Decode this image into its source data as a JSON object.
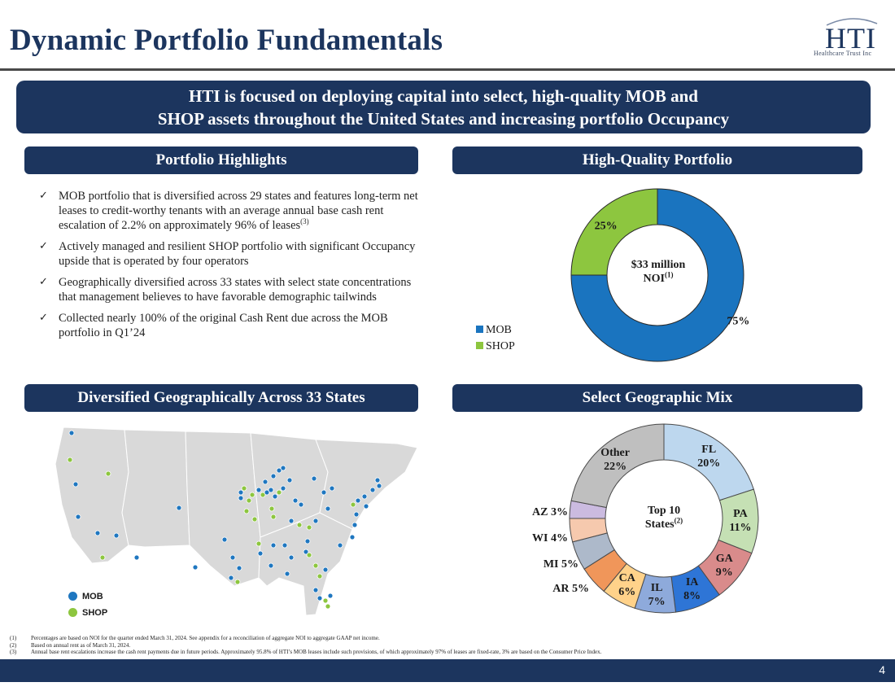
{
  "title": "Dynamic Portfolio Fundamentals",
  "logo": {
    "main": "HTI",
    "sub": "Healthcare Trust Inc"
  },
  "banner": {
    "line1": "HTI is focused on deploying capital into select, high-quality MOB and",
    "line2": "SHOP assets throughout the United States and increasing portfolio Occupancy"
  },
  "sections": {
    "highlights": "Portfolio Highlights",
    "quality": "High-Quality Portfolio",
    "geo": "Diversified Geographically Across 33 States",
    "mix": "Select Geographic Mix"
  },
  "bullets": [
    {
      "text": "MOB portfolio that is diversified across 29 states and features long-term net leases to credit-worthy tenants with an average annual base cash rent escalation of 2.2% on approximately 96% of leases",
      "sup": "(3)"
    },
    {
      "text": "Actively managed and resilient SHOP portfolio with significant Occupancy upside that is operated by four operators",
      "sup": ""
    },
    {
      "text": "Geographically diversified across 33 states with select state concentrations that management believes to have favorable demographic tailwinds",
      "sup": ""
    },
    {
      "text": "Collected nearly 100% of the original Cash Rent due across the MOB portfolio in Q1’24",
      "sup": ""
    }
  ],
  "check_icon": "checkmark-icon",
  "noi_center": {
    "line1": "$33 million",
    "line2": "NOI",
    "sup": "(1)"
  },
  "mix_center": {
    "line1": "Top 10",
    "line2": "States",
    "sup": "(2)"
  },
  "map_legend": {
    "mob": "MOB",
    "shop": "SHOP"
  },
  "colors": {
    "navy": "#1c355e",
    "mob_blue": "#1f77c0",
    "shop_green": "#8dc63f"
  },
  "chart_data": [
    {
      "type": "pie",
      "categories": [
        "MOB",
        "SHOP"
      ],
      "values": [
        75,
        25
      ],
      "labels": [
        "75%",
        "25%"
      ],
      "colors": [
        "#1a74bf",
        "#8dc63f"
      ],
      "legend": "bottom-left"
    },
    {
      "type": "pie",
      "categories": [
        "FL",
        "PA",
        "GA",
        "IA",
        "IL",
        "CA",
        "AR",
        "MI",
        "WI",
        "AZ",
        "Other"
      ],
      "values": [
        20,
        11,
        9,
        8,
        7,
        6,
        5,
        5,
        4,
        3,
        22
      ],
      "labels": [
        "FL\n20%",
        "PA\n11%",
        "GA\n9%",
        "IA\n8%",
        "IL\n7%",
        "CA\n6%",
        "AR 5%",
        "MI 5%",
        "WI 4%",
        "AZ 3%",
        "Other\n22%"
      ],
      "colors": [
        "#bdd7ee",
        "#c5e0b4",
        "#d98b8b",
        "#2e75d6",
        "#8eaadb",
        "#ffd28a",
        "#f0965a",
        "#adb9ca",
        "#f6c9ae",
        "#cbbbe0",
        "#bfbfbf"
      ]
    }
  ],
  "footnotes": [
    {
      "n": "(1)",
      "text": "Percentages are based on NOI for the quarter ended March 31, 2024. See appendix for a reconciliation of aggregate NOI to aggregate GAAP net income."
    },
    {
      "n": "(2)",
      "text": "Based on annual rent as of March 31, 2024."
    },
    {
      "n": "(3)",
      "text": "Annual base rent escalations increase the cash rent payments due in future periods. Approximately 95.8% of HTI’s MOB leases include such provisions, of which approximately 97% of leases are fixed-rate, 3% are based on the Consumer Price Index."
    }
  ],
  "page_number": "4"
}
